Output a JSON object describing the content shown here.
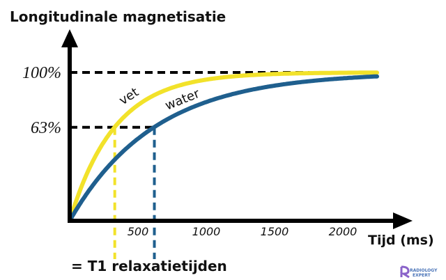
{
  "chart_data": {
    "type": "line",
    "title": "Longitudinale magnetisatie",
    "xlabel": "Tijd (ms)",
    "ylabel": "",
    "x_ticks": [
      500,
      1000,
      1500,
      2000
    ],
    "x_tick_labels": [
      "500",
      "1000",
      "1500",
      "2000"
    ],
    "y_ticks": [
      63,
      100
    ],
    "y_tick_labels": [
      "63%",
      "100%"
    ],
    "xlim": [
      0,
      2250
    ],
    "ylim": [
      0,
      100
    ],
    "grid": false,
    "series": [
      {
        "name": "vet",
        "color": "#f2e22a",
        "T1": 330,
        "x": [
          0,
          100,
          200,
          330,
          500,
          700,
          1000,
          1300,
          1600,
          2000,
          2250
        ],
        "y": [
          0,
          26,
          45,
          63,
          78,
          88,
          95,
          98,
          99,
          100,
          100
        ]
      },
      {
        "name": "water",
        "color": "#1f5f8e",
        "T1": 620,
        "x": [
          0,
          100,
          200,
          400,
          620,
          800,
          1000,
          1300,
          1600,
          2000,
          2250
        ],
        "y": [
          0,
          15,
          28,
          48,
          63,
          72,
          80,
          88,
          92,
          96,
          97
        ]
      }
    ],
    "annotations": [
      "= T1 relaxatietijden"
    ]
  },
  "logo": {
    "text_top": "RADIOLOGY",
    "text_bottom": "EXPERT"
  }
}
